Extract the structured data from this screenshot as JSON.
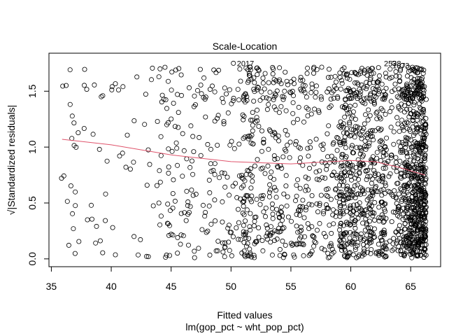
{
  "chart_data": {
    "type": "scatter",
    "title": "Scale-Location",
    "xlabel": "Fitted values",
    "xlabel_sub": "lm(gop_pct ~ wht_pop_pct)",
    "ylabel": "√|Standardized residuals|",
    "xlim": [
      34.8,
      67.5
    ],
    "ylim": [
      -0.07,
      1.84
    ],
    "x_ticks": [
      35,
      40,
      45,
      50,
      55,
      60,
      65
    ],
    "x_tick_labels": [
      "35",
      "40",
      "45",
      "50",
      "55",
      "60",
      "65"
    ],
    "y_ticks": [
      0.0,
      0.5,
      1.0,
      1.5
    ],
    "y_tick_labels": [
      "0.0",
      "0.5",
      "1.0",
      "1.5"
    ],
    "marker": "open-circle",
    "n_points_approx": 2000,
    "point_density_note": "points become much denser toward higher fitted values (60-66)",
    "smoother": {
      "color": "#DF536B",
      "x": [
        35.9,
        40,
        45,
        50,
        55,
        60,
        62,
        64,
        66.2
      ],
      "y": [
        1.07,
        1.02,
        0.93,
        0.87,
        0.85,
        0.88,
        0.87,
        0.82,
        0.75
      ]
    },
    "highlighted_points": [
      {
        "label": "2017",
        "x": 50.2,
        "y": 1.75
      },
      {
        "label": "2538",
        "x": 63.6,
        "y": 1.75
      },
      {
        "label": "1673",
        "x": 64.3,
        "y": 1.73
      }
    ],
    "colors": {
      "points": "#000000",
      "smoother": "#DF536B",
      "frame": "#000000",
      "background": "#ffffff"
    }
  }
}
